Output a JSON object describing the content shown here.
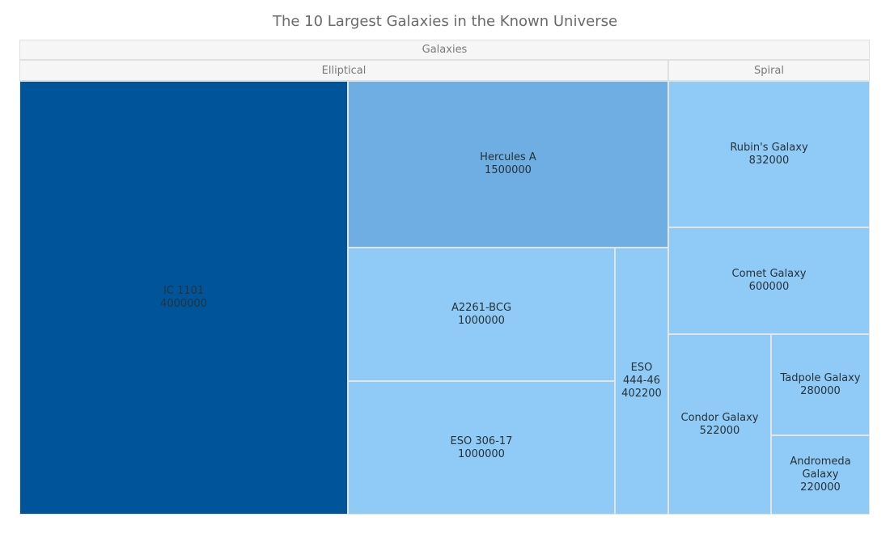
{
  "chart_data": {
    "type": "treemap",
    "title": "The 10 Largest Galaxies in the Known Universe",
    "root": "Galaxies",
    "groups": [
      {
        "name": "Elliptical",
        "items": [
          {
            "name": "IC 1101",
            "value": 4000000,
            "color": "#00559a"
          },
          {
            "name": "Hercules A",
            "value": 1500000,
            "color": "#6eaee2"
          },
          {
            "name": "A2261-BCG",
            "value": 1000000,
            "color": "#90caf6"
          },
          {
            "name": "ESO 306-17",
            "value": 1000000,
            "color": "#90caf6"
          },
          {
            "name": "ESO 444-46",
            "value": 402200,
            "color": "#90caf6"
          }
        ]
      },
      {
        "name": "Spiral",
        "items": [
          {
            "name": "Rubin's Galaxy",
            "value": 832000,
            "color": "#90caf6"
          },
          {
            "name": "Comet Galaxy",
            "value": 600000,
            "color": "#90caf6"
          },
          {
            "name": "Condor Galaxy",
            "value": 522000,
            "color": "#90caf6"
          },
          {
            "name": "Tadpole Galaxy",
            "value": 280000,
            "color": "#90caf6"
          },
          {
            "name": "Andromeda Galaxy",
            "value": 220000,
            "color": "#90caf6"
          }
        ]
      }
    ]
  }
}
